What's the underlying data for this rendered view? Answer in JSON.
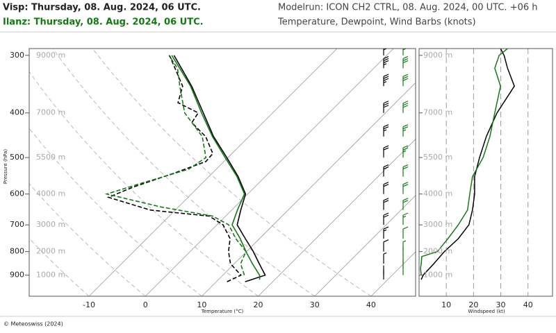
{
  "header": {
    "station_1": "Visp: Thursday, 08. Aug. 2024, 06 UTC.",
    "station_2": "Ilanz: Thursday, 08. Aug. 2024, 06 UTC.",
    "modelrun": "Modelrun: ICON CH2 CTRL, 08. Aug. 2024, 00 UTC. +06 h",
    "subtitle": "Temperature, Dewpoint, Wind Barbs (knots)"
  },
  "footer": "© Meteoswiss (2024)",
  "chart_data": [
    {
      "type": "skewt",
      "y_label": "Pressure (hPa)",
      "x_label": "Temperature (°C)",
      "y_scale": "log",
      "ylim": [
        1000,
        290
      ],
      "yticks": [
        300,
        400,
        500,
        600,
        700,
        800,
        900
      ],
      "altitude_labels": [
        "9000 m",
        "7000 m",
        "5500 m",
        "4000 m",
        "3000 m",
        "2000 m",
        "1000 m"
      ],
      "xlim": [
        -20.6,
        47.9
      ],
      "xticks": [
        -10,
        0,
        10,
        20,
        30,
        40
      ],
      "series": [
        {
          "color": "#000000",
          "dashed": false,
          "pressure": [
            930,
            900,
            850,
            800,
            750,
            700,
            650,
            600,
            550,
            500,
            450,
            400,
            350,
            300
          ],
          "values": [
            15.1,
            17.5,
            14.4,
            11.2,
            7.5,
            3.6,
            1.6,
            -0.4,
            -4.8,
            -10.2,
            -16.3,
            -22.3,
            -29.1,
            -37.7
          ]
        },
        {
          "color": "#000000",
          "dashed": true,
          "pressure": [
            930,
            900,
            850,
            800,
            750,
            700,
            670,
            650,
            610,
            580,
            540,
            510,
            490,
            450,
            420,
            400,
            380,
            350,
            300
          ],
          "values": [
            11.9,
            13.2,
            9.3,
            6.8,
            4.8,
            1.1,
            -2.9,
            -14.4,
            -24.1,
            -21.6,
            -16.7,
            -13.2,
            -13.4,
            -17.7,
            -22.6,
            -23.2,
            -28.6,
            -30.7,
            -38.5
          ]
        },
        {
          "color": "#137a13",
          "dashed": false,
          "pressure": [
            920,
            900,
            850,
            800,
            750,
            700,
            650,
            600,
            550,
            500,
            450,
            400,
            350,
            300
          ],
          "values": [
            17.3,
            16.5,
            13.2,
            9.9,
            6.6,
            2.7,
            1.0,
            -0.6,
            -5.0,
            -10.5,
            -16.5,
            -22.6,
            -29.3,
            -38.1
          ]
        },
        {
          "color": "#137a13",
          "dashed": true,
          "pressure": [
            900,
            850,
            800,
            750,
            700,
            670,
            640,
            600,
            570,
            530,
            500,
            450,
            400,
            350,
            320,
            300
          ],
          "values": [
            13.8,
            11.1,
            9.9,
            5.8,
            2.1,
            -2.3,
            -13.1,
            -25.0,
            -21.0,
            -14.9,
            -13.9,
            -18.3,
            -25.6,
            -31.2,
            -34.8,
            -38.6
          ]
        }
      ]
    },
    {
      "type": "wind_profile",
      "x_label": "Windspeed (kt)",
      "y_scale": "log",
      "ylim": [
        1000,
        290
      ],
      "yticks": [
        300,
        400,
        500,
        600,
        700,
        800,
        900
      ],
      "altitude_labels": [
        "9000 m",
        "7000 m",
        "5500 m",
        "4000 m",
        "3000 m",
        "2000 m",
        "1000 m"
      ],
      "xlim": [
        0,
        49
      ],
      "xticks": [
        10,
        20,
        30,
        40
      ],
      "grid": true,
      "series": [
        {
          "color": "#000000",
          "pressure": [
            920,
            900,
            850,
            800,
            750,
            700,
            650,
            600,
            550,
            500,
            450,
            400,
            350,
            320,
            300,
            290
          ],
          "values": [
            0.8,
            1.5,
            5.4,
            9.3,
            14.4,
            18.3,
            19.6,
            20.4,
            20.4,
            22.2,
            24.7,
            28.6,
            35.0,
            32.5,
            31.2,
            29.9
          ]
        },
        {
          "color": "#137a13",
          "pressure": [
            900,
            870,
            850,
            820,
            800,
            750,
            700,
            650,
            600,
            550,
            500,
            450,
            400,
            350,
            320,
            300,
            290
          ],
          "values": [
            0.8,
            0.5,
            0.8,
            1.0,
            6.7,
            10.6,
            14.4,
            17.8,
            18.6,
            19.6,
            23.5,
            26.0,
            27.8,
            29.9,
            27.8,
            29.4,
            32.5
          ]
        }
      ]
    }
  ]
}
